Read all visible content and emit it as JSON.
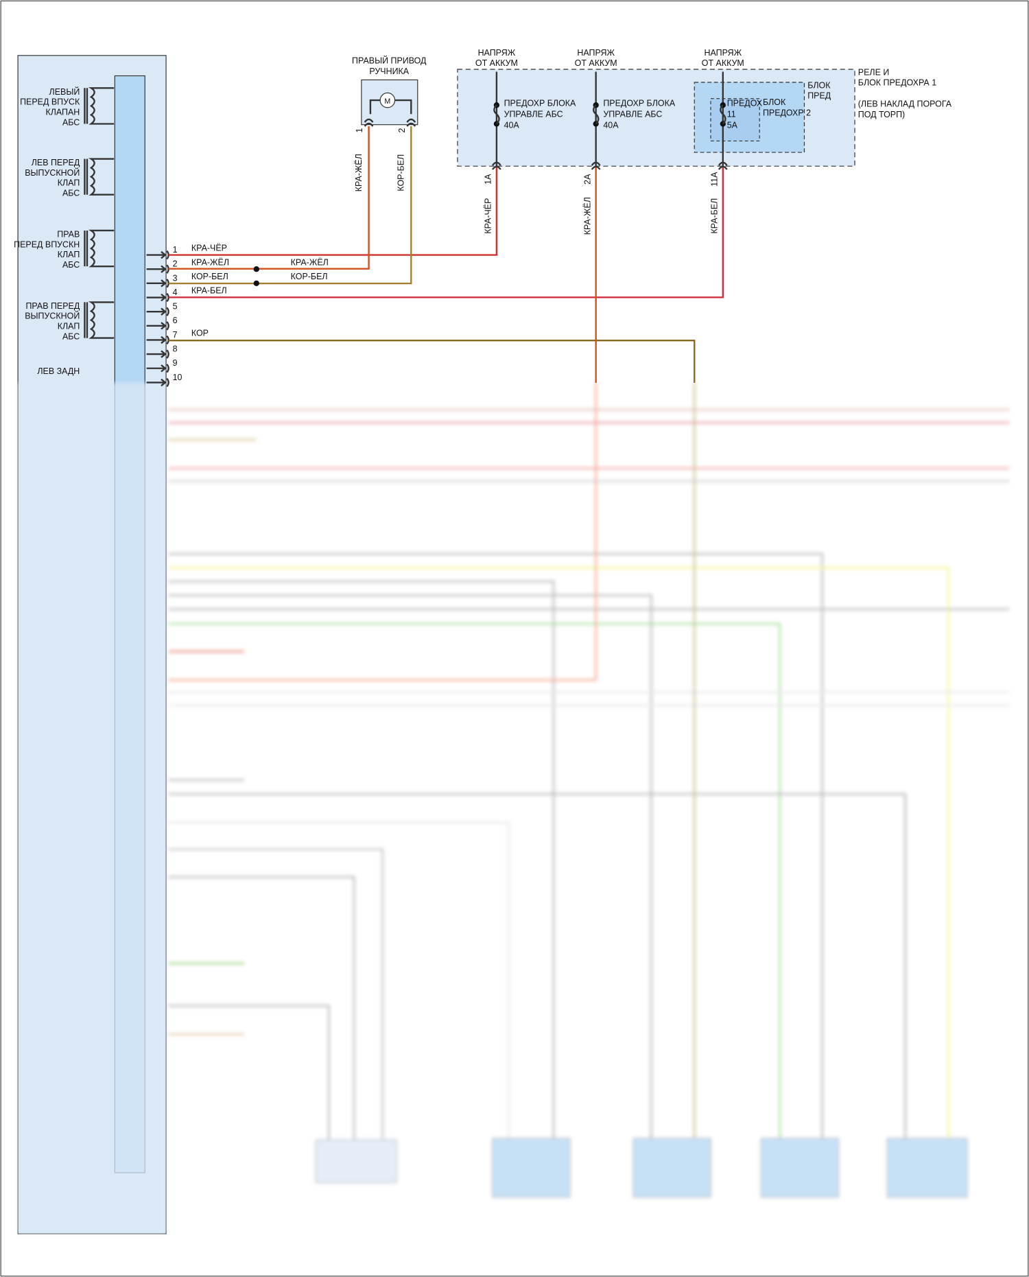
{
  "module_labels": [
    [
      "ЛЕВЫЙ",
      "ПЕРЕД ВПУСК",
      "КЛАПАН",
      "АБС"
    ],
    [
      "ЛЕВ ПЕРЕД",
      "ВЫПУСКНОЙ",
      "КЛАП",
      "АБС"
    ],
    [
      "ПРАВ",
      "ПЕРЕД ВПУСКН",
      "КЛАП",
      "АБС"
    ],
    [
      "ПРАВ ПЕРЕД",
      "ВЫПУСКНОЙ",
      "КЛАП",
      "АБС"
    ],
    [
      "ЛЕВ ЗАДН"
    ]
  ],
  "pins": [
    1,
    2,
    3,
    4,
    5,
    6,
    7,
    8,
    9,
    10
  ],
  "wires": [
    {
      "label": "КРА-ЧЁР"
    },
    {
      "label": "КРА-ЖЁЛ",
      "splice_label": "КРА-ЖЁЛ"
    },
    {
      "label": "КОР-БЕЛ",
      "splice_label": "КОР-БЕЛ"
    },
    {
      "label": "КРА-БЕЛ"
    },
    {
      "label": "КОР"
    }
  ],
  "motor": {
    "title": [
      "ПРАВЫЙ ПРИВОД",
      "РУЧНИКА"
    ],
    "symbol": "M",
    "pins": [
      1,
      2
    ],
    "wires": [
      "КРА-ЖЁЛ",
      "КОР-БЕЛ"
    ]
  },
  "supplies": [
    [
      "НАПРЯЖ",
      "ОТ АККУМ"
    ],
    [
      "НАПРЯЖ",
      "ОТ АККУМ"
    ],
    [
      "НАПРЯЖ",
      "ОТ АККУМ"
    ]
  ],
  "fuses": [
    {
      "name": [
        "ПРЕДОХР БЛОКА",
        "УПРАВЛЕ АБС",
        "40А"
      ],
      "pin": "1А",
      "wire": "КРА-ЧЁР"
    },
    {
      "name": [
        "ПРЕДОХР БЛОКА",
        "УПРАВЛЕ АБС",
        "40А"
      ],
      "pin": "2А",
      "wire": "КРА-ЖЁЛ"
    },
    {
      "name": [
        "ПРЕДОХ",
        "11",
        "5А"
      ],
      "pin": "11А",
      "wire": "КРА-БЕЛ"
    }
  ],
  "inner_block": [
    "БЛОК",
    "ПРЕД"
  ],
  "fuse_block_2": [
    "БЛОК",
    "ПРЕДОХР 2"
  ],
  "relay_box": {
    "name": [
      "РЕЛЕ И",
      "БЛОК ПРЕДОХРА 1"
    ],
    "location": [
      "(ЛЕВ НАКЛАД ПОРОГА",
      "ПОД ТОРП)"
    ]
  }
}
